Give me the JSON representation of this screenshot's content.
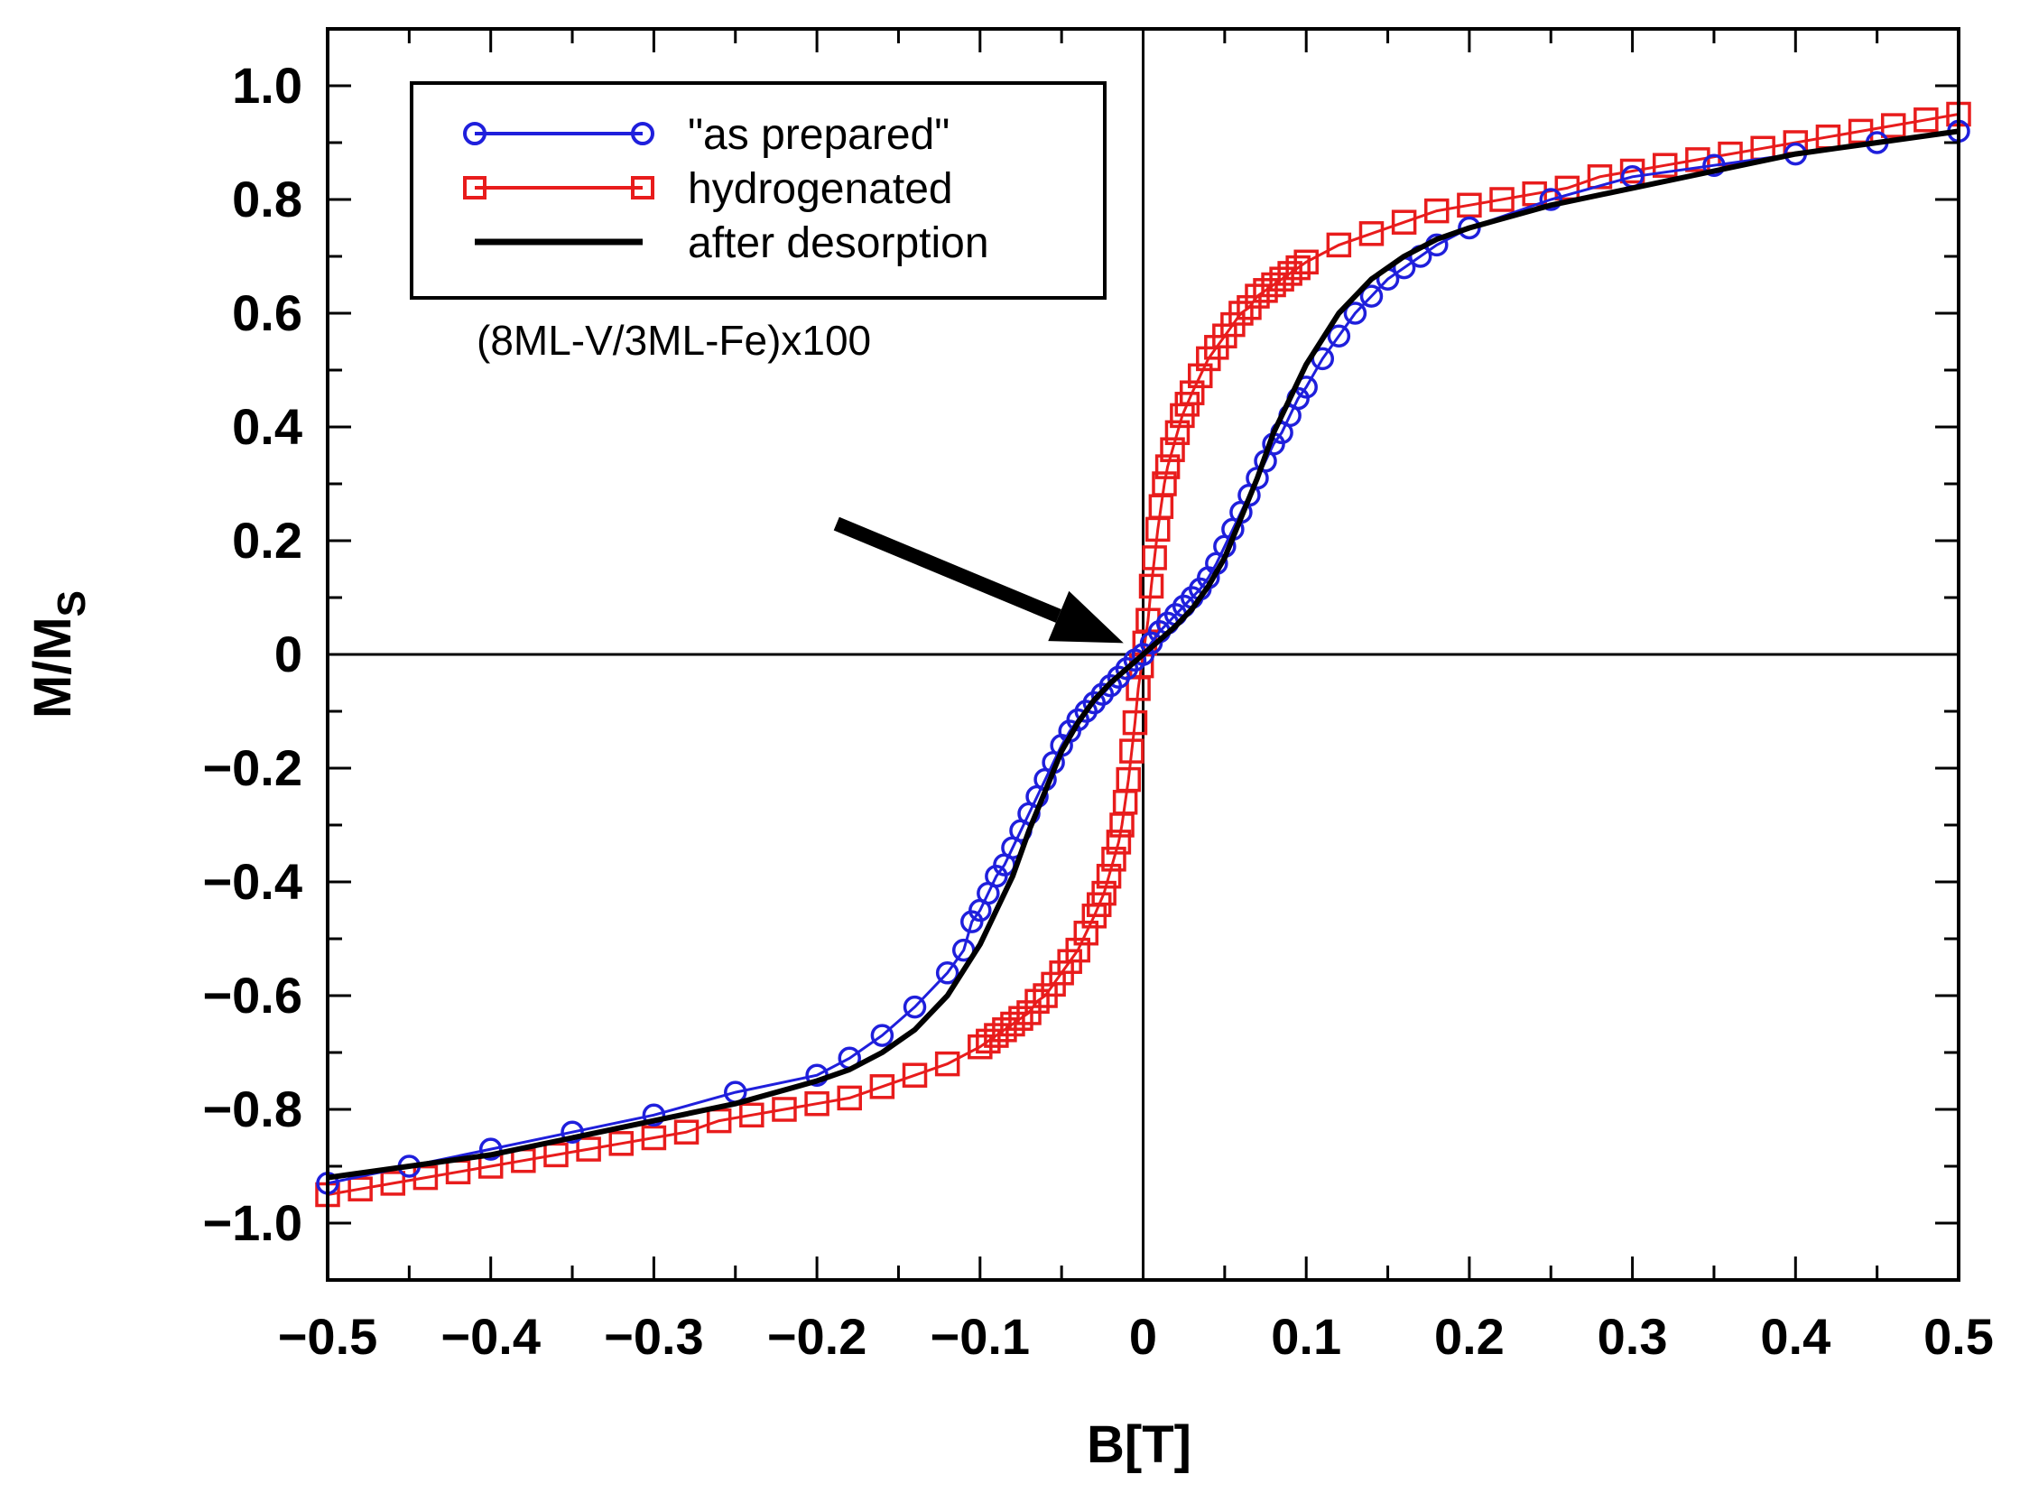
{
  "chart_data": {
    "type": "scatter",
    "title": "",
    "xlabel": "B[T]",
    "ylabel_main": "M/M",
    "ylabel_sub": "S",
    "xlim": [
      -0.5,
      0.5
    ],
    "ylim": [
      -1.1,
      1.1
    ],
    "xticks": [
      -0.5,
      -0.4,
      -0.3,
      -0.2,
      -0.1,
      0,
      0.1,
      0.2,
      0.3,
      0.4,
      0.5
    ],
    "xtick_labels": [
      "−0.5",
      "−0.4",
      "−0.3",
      "−0.2",
      "−0.1",
      "0",
      "0.1",
      "0.2",
      "0.3",
      "0.4",
      "0.5"
    ],
    "yticks": [
      -1.0,
      -0.8,
      -0.6,
      -0.4,
      -0.2,
      0,
      0.2,
      0.4,
      0.6,
      0.8,
      1.0
    ],
    "ytick_labels": [
      "−1.0",
      "−0.8",
      "−0.6",
      "−0.4",
      "−0.2",
      "0",
      "0.2",
      "0.4",
      "0.6",
      "0.8",
      "1.0"
    ],
    "annotation": "(8ML-V/3ML-Fe)x100",
    "arrow": {
      "from": [
        -0.188,
        0.23
      ],
      "to": [
        -0.012,
        0.02
      ]
    },
    "legend_position": "top-left",
    "series": [
      {
        "name": "\"as prepared\"",
        "color": "#1f1fdc",
        "marker": "circle",
        "x": [
          -0.5,
          -0.45,
          -0.4,
          -0.35,
          -0.3,
          -0.25,
          -0.2,
          -0.18,
          -0.16,
          -0.14,
          -0.12,
          -0.11,
          -0.105,
          -0.1,
          -0.095,
          -0.09,
          -0.085,
          -0.08,
          -0.075,
          -0.07,
          -0.065,
          -0.06,
          -0.055,
          -0.05,
          -0.045,
          -0.04,
          -0.035,
          -0.03,
          -0.025,
          -0.02,
          -0.015,
          -0.01,
          -0.005,
          0,
          0.005,
          0.01,
          0.015,
          0.02,
          0.025,
          0.03,
          0.035,
          0.04,
          0.045,
          0.05,
          0.055,
          0.06,
          0.065,
          0.07,
          0.075,
          0.08,
          0.085,
          0.09,
          0.095,
          0.1,
          0.11,
          0.12,
          0.13,
          0.14,
          0.15,
          0.16,
          0.17,
          0.18,
          0.2,
          0.25,
          0.3,
          0.35,
          0.4,
          0.45,
          0.5
        ],
        "y": [
          -0.93,
          -0.9,
          -0.87,
          -0.84,
          -0.81,
          -0.77,
          -0.74,
          -0.71,
          -0.67,
          -0.62,
          -0.56,
          -0.52,
          -0.47,
          -0.45,
          -0.42,
          -0.39,
          -0.37,
          -0.34,
          -0.31,
          -0.28,
          -0.25,
          -0.22,
          -0.19,
          -0.16,
          -0.135,
          -0.115,
          -0.1,
          -0.085,
          -0.07,
          -0.055,
          -0.04,
          -0.025,
          -0.01,
          0.0,
          0.02,
          0.04,
          0.055,
          0.07,
          0.085,
          0.1,
          0.115,
          0.135,
          0.16,
          0.19,
          0.22,
          0.25,
          0.28,
          0.31,
          0.34,
          0.37,
          0.39,
          0.42,
          0.45,
          0.47,
          0.52,
          0.56,
          0.6,
          0.63,
          0.66,
          0.68,
          0.7,
          0.72,
          0.75,
          0.8,
          0.84,
          0.86,
          0.88,
          0.9,
          0.92
        ]
      },
      {
        "name": "hydrogenated",
        "color": "#e81c1c",
        "marker": "square",
        "x": [
          -0.5,
          -0.48,
          -0.46,
          -0.44,
          -0.42,
          -0.4,
          -0.38,
          -0.36,
          -0.34,
          -0.32,
          -0.3,
          -0.28,
          -0.26,
          -0.24,
          -0.22,
          -0.2,
          -0.18,
          -0.16,
          -0.14,
          -0.12,
          -0.1,
          -0.095,
          -0.09,
          -0.085,
          -0.08,
          -0.075,
          -0.07,
          -0.065,
          -0.06,
          -0.055,
          -0.05,
          -0.045,
          -0.04,
          -0.035,
          -0.03,
          -0.027,
          -0.024,
          -0.021,
          -0.018,
          -0.015,
          -0.013,
          -0.011,
          -0.009,
          -0.007,
          -0.005,
          -0.003,
          -0.001,
          0.001,
          0.003,
          0.005,
          0.007,
          0.009,
          0.011,
          0.013,
          0.015,
          0.018,
          0.021,
          0.024,
          0.027,
          0.03,
          0.035,
          0.04,
          0.045,
          0.05,
          0.055,
          0.06,
          0.065,
          0.07,
          0.075,
          0.08,
          0.085,
          0.09,
          0.095,
          0.1,
          0.12,
          0.14,
          0.16,
          0.18,
          0.2,
          0.22,
          0.24,
          0.26,
          0.28,
          0.3,
          0.32,
          0.34,
          0.36,
          0.38,
          0.4,
          0.42,
          0.44,
          0.46,
          0.48,
          0.5
        ],
        "y": [
          -0.95,
          -0.94,
          -0.93,
          -0.92,
          -0.91,
          -0.9,
          -0.89,
          -0.88,
          -0.87,
          -0.86,
          -0.85,
          -0.84,
          -0.82,
          -0.81,
          -0.8,
          -0.79,
          -0.78,
          -0.76,
          -0.74,
          -0.72,
          -0.69,
          -0.68,
          -0.67,
          -0.66,
          -0.65,
          -0.64,
          -0.63,
          -0.61,
          -0.6,
          -0.58,
          -0.56,
          -0.54,
          -0.52,
          -0.49,
          -0.46,
          -0.44,
          -0.42,
          -0.39,
          -0.36,
          -0.33,
          -0.3,
          -0.26,
          -0.22,
          -0.17,
          -0.12,
          -0.06,
          -0.02,
          0.02,
          0.06,
          0.12,
          0.17,
          0.22,
          0.26,
          0.3,
          0.33,
          0.36,
          0.39,
          0.42,
          0.44,
          0.46,
          0.49,
          0.52,
          0.54,
          0.56,
          0.58,
          0.6,
          0.61,
          0.63,
          0.64,
          0.65,
          0.66,
          0.67,
          0.68,
          0.69,
          0.72,
          0.74,
          0.76,
          0.78,
          0.79,
          0.8,
          0.81,
          0.82,
          0.84,
          0.85,
          0.86,
          0.87,
          0.88,
          0.89,
          0.9,
          0.91,
          0.92,
          0.93,
          0.94,
          0.95
        ]
      },
      {
        "name": "after desorption",
        "color": "#000000",
        "marker": "line",
        "x": [
          -0.5,
          -0.45,
          -0.4,
          -0.35,
          -0.3,
          -0.25,
          -0.2,
          -0.18,
          -0.16,
          -0.14,
          -0.12,
          -0.1,
          -0.09,
          -0.08,
          -0.07,
          -0.06,
          -0.05,
          -0.04,
          -0.03,
          -0.02,
          -0.01,
          0,
          0.01,
          0.02,
          0.03,
          0.04,
          0.05,
          0.06,
          0.07,
          0.08,
          0.09,
          0.1,
          0.12,
          0.14,
          0.16,
          0.18,
          0.2,
          0.25,
          0.3,
          0.35,
          0.4,
          0.45,
          0.5
        ],
        "y": [
          -0.92,
          -0.9,
          -0.88,
          -0.85,
          -0.82,
          -0.79,
          -0.75,
          -0.73,
          -0.7,
          -0.66,
          -0.6,
          -0.51,
          -0.45,
          -0.39,
          -0.31,
          -0.24,
          -0.17,
          -0.12,
          -0.08,
          -0.05,
          -0.025,
          0.0,
          0.025,
          0.05,
          0.08,
          0.12,
          0.17,
          0.24,
          0.31,
          0.39,
          0.45,
          0.51,
          0.6,
          0.66,
          0.7,
          0.73,
          0.75,
          0.79,
          0.82,
          0.85,
          0.88,
          0.9,
          0.92
        ]
      }
    ]
  }
}
